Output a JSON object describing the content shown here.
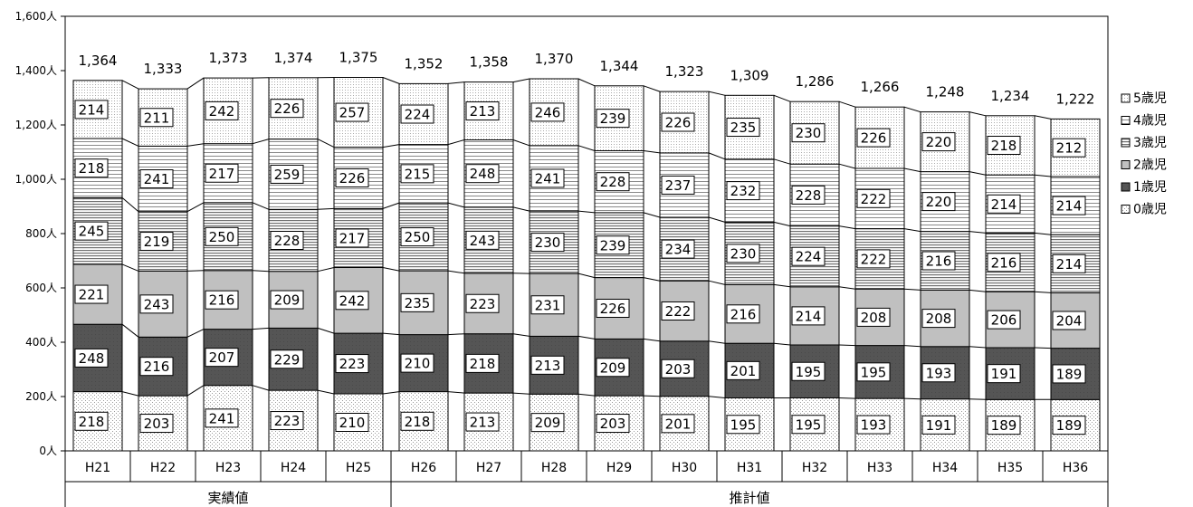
{
  "chart_data": {
    "type": "bar",
    "stacked": true,
    "categories": [
      "H21",
      "H22",
      "H23",
      "H24",
      "H25",
      "H26",
      "H27",
      "H28",
      "H29",
      "H30",
      "H31",
      "H32",
      "H33",
      "H34",
      "H35",
      "H36"
    ],
    "groups": [
      {
        "label": "実績値",
        "categories": [
          "H21",
          "H22",
          "H23",
          "H24",
          "H25"
        ]
      },
      {
        "label": "推計値",
        "categories": [
          "H26",
          "H27",
          "H28",
          "H29",
          "H30",
          "H31",
          "H32",
          "H33",
          "H34",
          "H35",
          "H36"
        ]
      }
    ],
    "series": [
      {
        "name": "0歳児",
        "pattern": "light-dots",
        "values": [
          218,
          203,
          241,
          223,
          210,
          218,
          213,
          209,
          203,
          201,
          195,
          195,
          193,
          191,
          189,
          189
        ]
      },
      {
        "name": "1歳児",
        "pattern": "dark-solid",
        "values": [
          248,
          216,
          207,
          229,
          223,
          210,
          218,
          213,
          209,
          203,
          201,
          195,
          195,
          193,
          191,
          189
        ]
      },
      {
        "name": "2歳児",
        "pattern": "light-gray-solid",
        "values": [
          221,
          243,
          216,
          209,
          242,
          235,
          223,
          231,
          226,
          222,
          216,
          214,
          208,
          208,
          206,
          204
        ]
      },
      {
        "name": "3歳児",
        "pattern": "dense-horizontal-lines",
        "values": [
          245,
          219,
          250,
          228,
          217,
          250,
          243,
          230,
          239,
          234,
          230,
          224,
          222,
          216,
          216,
          214
        ]
      },
      {
        "name": "4歳児",
        "pattern": "horizontal-lines",
        "values": [
          218,
          241,
          217,
          259,
          226,
          215,
          248,
          241,
          228,
          237,
          232,
          228,
          222,
          220,
          214,
          214
        ]
      },
      {
        "name": "5歳児",
        "pattern": "fine-dots",
        "values": [
          214,
          211,
          242,
          226,
          257,
          224,
          213,
          246,
          239,
          226,
          235,
          230,
          226,
          220,
          218,
          212
        ]
      }
    ],
    "totals": [
      "1,364",
      "1,333",
      "1,373",
      "1,374",
      "1,375",
      "1,352",
      "1,358",
      "1,370",
      "1,344",
      "1,323",
      "1,309",
      "1,286",
      "1,266",
      "1,248",
      "1,234",
      "1,222"
    ],
    "yticks": [
      "0人",
      "200人",
      "400人",
      "600人",
      "800人",
      "1,000人",
      "1,200人",
      "1,400人",
      "1,600人"
    ],
    "ylim": [
      0,
      1600
    ],
    "grid": false,
    "legend_position": "right",
    "legend_order": [
      "5歳児",
      "4歳児",
      "3歳児",
      "2歳児",
      "1歳児",
      "0歳児"
    ]
  }
}
